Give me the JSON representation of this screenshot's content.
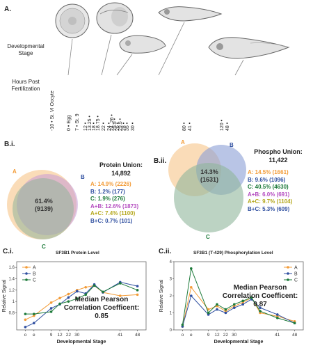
{
  "panels": {
    "a": "A.",
    "bi": "B.i.",
    "bii": "B.ii.",
    "ci": "C.i.",
    "cii": "C.ii."
  },
  "timeline": {
    "stage_label_1": "Developmental",
    "stage_label_2": "Stage",
    "hours_label_1": "Hours Post",
    "hours_label_2": "Fertilization",
    "ticks": [
      {
        "time": "-10",
        "label": "St. VI Oocyte"
      },
      {
        "time": "0",
        "label": "Egg"
      },
      {
        "time": "7",
        "label": "St. 9"
      },
      {
        "time": "12"
      },
      {
        "time": "13.25"
      },
      {
        "time": "18"
      },
      {
        "time": "18.75"
      },
      {
        "time": "22"
      },
      {
        "time": "24"
      },
      {
        "time": "24, 26"
      },
      {
        "time": "25.5"
      },
      {
        "time": "26"
      },
      {
        "time": "29.5"
      },
      {
        "time": "28"
      },
      {
        "time": "35"
      },
      {
        "time": "30"
      },
      {
        "time": "80"
      },
      {
        "time": "41"
      },
      {
        "time": "120"
      },
      {
        "time": "48"
      }
    ]
  },
  "protein": {
    "title_1": "Protein Union:",
    "title_2": "14,892",
    "set_a": "A",
    "set_b": "B",
    "set_c": "C",
    "center_1": "61.4%",
    "center_2": "(9139)",
    "lines": [
      {
        "text": "A: 14.9% (2226)",
        "color": "#f39c38"
      },
      {
        "text": "B: 1.2% (177)",
        "color": "#2f4fa0"
      },
      {
        "text": "C: 1.9% (276)",
        "color": "#1d7a3a"
      },
      {
        "text": "A+B: 12.6% (1873)",
        "color": "#b44cc0"
      },
      {
        "text": "A+C: 7.4% (1100)",
        "color": "#b5a81e"
      },
      {
        "text": "B+C: 0.7% (101)",
        "color": "#2f4fa0"
      }
    ]
  },
  "phospho": {
    "title_1": "Phospho Union:",
    "title_2": "11,422",
    "set_a": "A",
    "set_b": "B",
    "set_c": "C",
    "center_1": "14.3%",
    "center_2": "(1631)",
    "lines": [
      {
        "text": "A: 14.5% (1661)",
        "color": "#f39c38"
      },
      {
        "text": "B: 9.6% (1096)",
        "color": "#2f4fa0"
      },
      {
        "text": "C: 40.5% (4630)",
        "color": "#1d7a3a"
      },
      {
        "text": "A+B: 6.0% (691)",
        "color": "#b44cc0"
      },
      {
        "text": "A+C: 9.7% (1104)",
        "color": "#b5a81e"
      },
      {
        "text": "B+C: 5.3% (609)",
        "color": "#2f4fa0"
      }
    ]
  },
  "colors": {
    "a": "#f39c38",
    "b": "#2f4fa0",
    "c": "#1d7a3a"
  },
  "chart_data": [
    {
      "type": "line",
      "title": "SF3B1 Protein Level",
      "xlabel": "Developmental Stage",
      "ylabel": "Relative Signal",
      "x_ticks": [
        "o",
        "e",
        "9",
        "12",
        "22",
        "30",
        "41",
        "48"
      ],
      "yticks": [
        0.8,
        1.0,
        1.2,
        1.4,
        1.6
      ],
      "ylim": [
        0.5,
        1.7
      ],
      "legend": "top-left",
      "annotation_1": "Median Pearson",
      "annotation_2": "Correlation Coefficent:",
      "annotation_3": "0.85",
      "series": [
        {
          "name": "A",
          "color": "#f39c38",
          "values": [
            0.68,
            0.75,
            0.98,
            1.06,
            1.13,
            1.2,
            1.25,
            1.28,
            1.16,
            1.1,
            1.12
          ]
        },
        {
          "name": "B",
          "color": "#2f4fa0",
          "values": [
            0.55,
            0.62,
            0.88,
            0.95,
            1.07,
            1.18,
            1.14,
            1.3,
            1.16,
            1.34,
            1.27
          ]
        },
        {
          "name": "C",
          "color": "#1d7a3a",
          "values": [
            0.78,
            0.78,
            0.82,
            0.96,
            1.0,
            1.05,
            1.12,
            1.28,
            1.17,
            1.32,
            1.2
          ]
        }
      ],
      "x_positions": [
        1,
        2,
        4,
        5,
        6,
        7,
        8,
        9,
        10,
        12,
        14
      ]
    },
    {
      "type": "line",
      "title": "SF3B1 (T-429) Phosphorylation Level",
      "xlabel": "Developmental Stage",
      "ylabel": "Relative Signal",
      "x_ticks": [
        "o",
        "e",
        "9",
        "12",
        "22",
        "30",
        "41",
        "48"
      ],
      "yticks": [
        0,
        1,
        2,
        3,
        4
      ],
      "ylim": [
        0,
        4
      ],
      "legend": "top-right",
      "annotation_1": "Median Pearson",
      "annotation_2": "Correlation Coefficent:",
      "annotation_3": "0.87",
      "series": [
        {
          "name": "A",
          "color": "#f39c38",
          "values": [
            0.2,
            2.5,
            1.2,
            1.4,
            1.1,
            1.4,
            1.6,
            1.9,
            1.0,
            0.8,
            0.5
          ]
        },
        {
          "name": "B",
          "color": "#2f4fa0",
          "values": [
            0.2,
            2.0,
            0.9,
            1.2,
            1.0,
            1.3,
            1.5,
            1.8,
            1.3,
            0.9,
            0.4
          ]
        },
        {
          "name": "C",
          "color": "#1d7a3a",
          "values": [
            0.3,
            3.6,
            1.0,
            1.5,
            1.2,
            1.5,
            1.7,
            1.9,
            1.1,
            0.7,
            0.4
          ]
        }
      ],
      "x_positions": [
        1,
        2,
        4,
        5,
        6,
        7,
        8,
        9,
        10,
        12,
        14
      ]
    }
  ]
}
